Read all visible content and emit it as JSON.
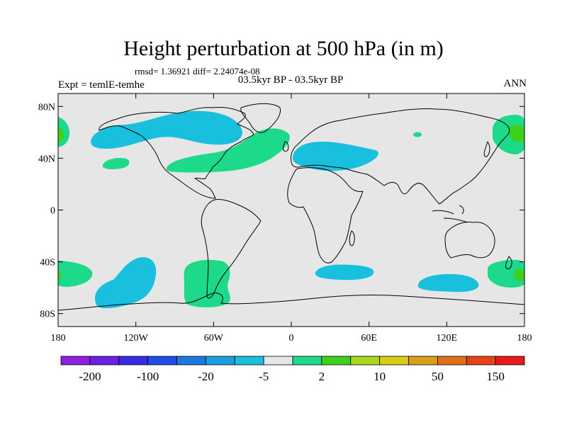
{
  "header": {
    "title": "Height perturbation at 500 hPa (in m)",
    "stats": "rmsd= 1.36921 diff= 2.24074e-08",
    "experiment": "Expt = temlE-temhe",
    "period": "03.5kyr BP - 03.5kyr BP",
    "season": "ANN"
  },
  "axes": {
    "y_ticks": [
      {
        "label": "80N",
        "lat": 80
      },
      {
        "label": "40N",
        "lat": 40
      },
      {
        "label": "0",
        "lat": 0
      },
      {
        "label": "40S",
        "lat": -40
      },
      {
        "label": "80S",
        "lat": -80
      }
    ],
    "x_ticks": [
      {
        "label": "180",
        "lon": -180
      },
      {
        "label": "120W",
        "lon": -120
      },
      {
        "label": "60W",
        "lon": -60
      },
      {
        "label": "0",
        "lon": 0
      },
      {
        "label": "60E",
        "lon": 60
      },
      {
        "label": "120E",
        "lon": 120
      },
      {
        "label": "180",
        "lon": 180
      }
    ]
  },
  "colors": {
    "background_fill": "#e6e6e6",
    "negative_fill": "#19c0de",
    "positive_fill": "#1dd98a",
    "positive_strong_fill": "#3ed01a",
    "coastline": "#000000"
  },
  "colorbar": {
    "boxes": [
      "#8f1ee0",
      "#6b1fe0",
      "#3a2ae6",
      "#1e4ee6",
      "#1a78e0",
      "#1a9ee0",
      "#19c0de",
      "#e6e6e6",
      "#1dd98a",
      "#3ed01a",
      "#a8d81e",
      "#d8cc19",
      "#d8a019",
      "#e0701a",
      "#e6421a",
      "#e61a1a"
    ],
    "labels": [
      "-200",
      "-100",
      "-20",
      "-5",
      "2",
      "10",
      "50",
      "150"
    ]
  },
  "anomalies": [
    {
      "name": "negative-anomaly-north-america",
      "sign": "negative",
      "value": -5,
      "center_lon": -112,
      "center_lat": 57
    },
    {
      "name": "negative-anomaly-eurasia",
      "sign": "negative",
      "value": -5,
      "center_lon": 25,
      "center_lat": 43
    },
    {
      "name": "negative-anomaly-south-pacific",
      "sign": "negative",
      "value": -5,
      "center_lon": -130,
      "center_lat": -58
    },
    {
      "name": "negative-anomaly-south-atlantic-indian",
      "sign": "negative",
      "value": -5,
      "center_lon": 35,
      "center_lat": -47
    },
    {
      "name": "negative-anomaly-south-indian",
      "sign": "negative",
      "value": -5,
      "center_lon": 112,
      "center_lat": -57
    },
    {
      "name": "positive-anomaly-north-atlantic",
      "sign": "positive",
      "value": 2,
      "center_lon": -40,
      "center_lat": 42
    },
    {
      "name": "positive-anomaly-north-pacific-east",
      "sign": "positive",
      "value": 2,
      "center_lon": 166,
      "center_lat": 58
    },
    {
      "name": "positive-anomaly-north-pacific-west",
      "sign": "positive",
      "value": 2,
      "center_lon": -174,
      "center_lat": 58
    },
    {
      "name": "positive-anomaly-east-pacific",
      "sign": "positive",
      "value": 2,
      "center_lon": -143,
      "center_lat": 36
    },
    {
      "name": "positive-anomaly-southern-south-america",
      "sign": "positive",
      "value": 2,
      "center_lon": -67,
      "center_lat": -63
    },
    {
      "name": "positive-anomaly-south-pacific-east",
      "sign": "positive",
      "value": 2,
      "center_lon": 165,
      "center_lat": -50
    },
    {
      "name": "positive-anomaly-south-pacific-west",
      "sign": "positive",
      "value": 2,
      "center_lon": -175,
      "center_lat": -50
    }
  ]
}
